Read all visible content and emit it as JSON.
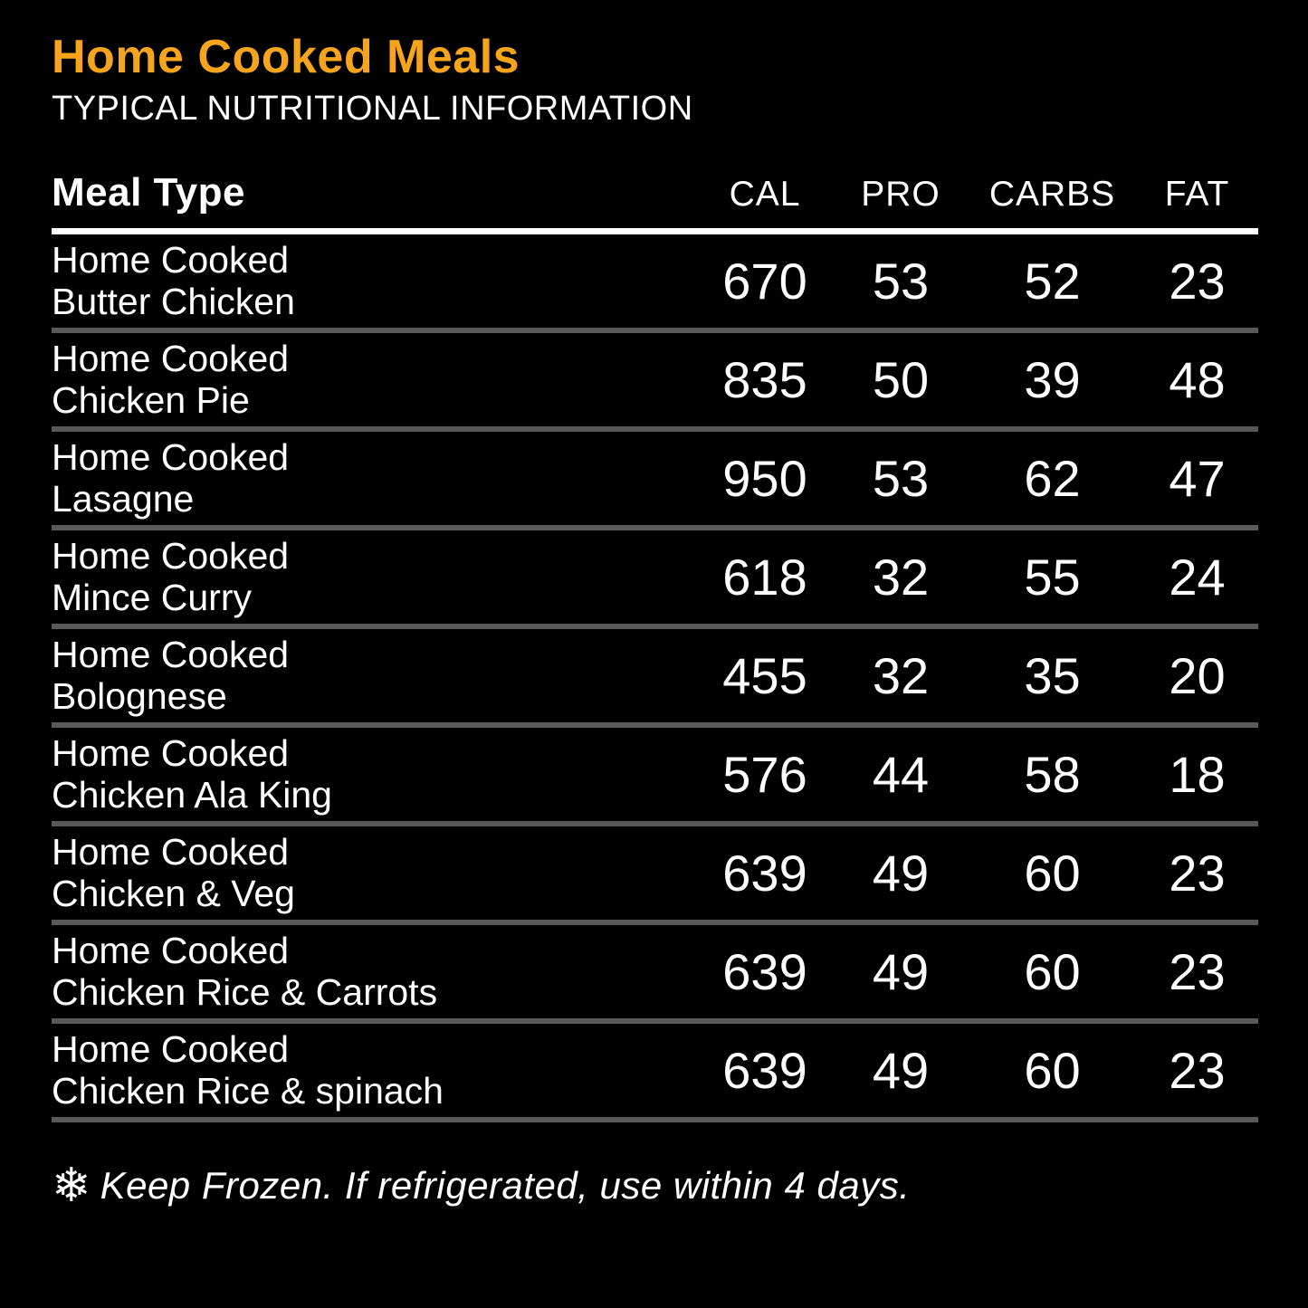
{
  "colors": {
    "background": "#000000",
    "text": "#FFFFFF",
    "accent": "#F5A41C",
    "separator": "#595959",
    "header_rule": "#FFFFFF"
  },
  "header": {
    "title": "Home Cooked Meals",
    "subtitle": "TYPICAL NUTRITIONAL INFORMATION"
  },
  "table": {
    "name_header": "Meal Type",
    "columns": [
      "CAL",
      "PRO",
      "CARBS",
      "FAT"
    ],
    "rows": [
      {
        "name_line1": "Home Cooked",
        "name_line2": "Butter Chicken",
        "cal": "670",
        "pro": "53",
        "carbs": "52",
        "fat": "23"
      },
      {
        "name_line1": "Home Cooked",
        "name_line2": "Chicken Pie",
        "cal": "835",
        "pro": "50",
        "carbs": "39",
        "fat": "48"
      },
      {
        "name_line1": "Home Cooked",
        "name_line2": "Lasagne",
        "cal": "950",
        "pro": "53",
        "carbs": "62",
        "fat": "47"
      },
      {
        "name_line1": "Home Cooked",
        "name_line2": "Mince Curry",
        "cal": "618",
        "pro": "32",
        "carbs": "55",
        "fat": "24"
      },
      {
        "name_line1": "Home Cooked",
        "name_line2": "Bolognese",
        "cal": "455",
        "pro": "32",
        "carbs": "35",
        "fat": "20"
      },
      {
        "name_line1": "Home Cooked",
        "name_line2": "Chicken Ala King",
        "cal": "576",
        "pro": "44",
        "carbs": "58",
        "fat": "18"
      },
      {
        "name_line1": "Home Cooked",
        "name_line2": "Chicken & Veg",
        "cal": "639",
        "pro": "49",
        "carbs": "60",
        "fat": "23"
      },
      {
        "name_line1": "Home Cooked",
        "name_line2": "Chicken Rice & Carrots",
        "cal": "639",
        "pro": "49",
        "carbs": "60",
        "fat": "23"
      },
      {
        "name_line1": "Home Cooked",
        "name_line2": "Chicken Rice & spinach",
        "cal": "639",
        "pro": "49",
        "carbs": "60",
        "fat": "23"
      }
    ]
  },
  "footer": {
    "icon": "snowflake-icon",
    "icon_glyph": "❄",
    "note": "Keep Frozen. If refrigerated, use within 4 days."
  }
}
